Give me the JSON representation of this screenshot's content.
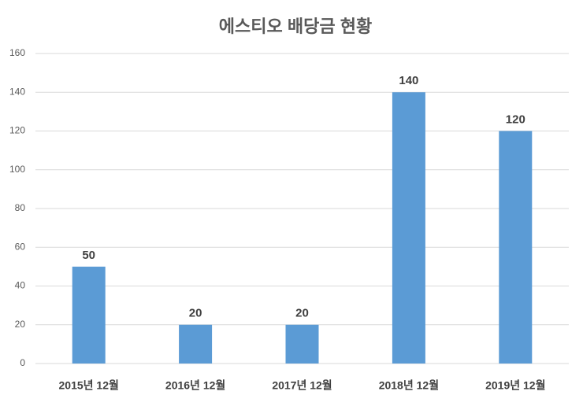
{
  "chart_data": {
    "type": "bar",
    "title": "에스티오 배당금 현황",
    "categories": [
      "2015년 12월",
      "2016년 12월",
      "2017년 12월",
      "2018년 12월",
      "2019년 12월"
    ],
    "values": [
      50,
      20,
      20,
      140,
      120
    ],
    "color": "#5b9bd5",
    "ylim": [
      0,
      160
    ],
    "yticks": [
      0,
      20,
      40,
      60,
      80,
      100,
      120,
      140,
      160
    ],
    "grid": true
  }
}
